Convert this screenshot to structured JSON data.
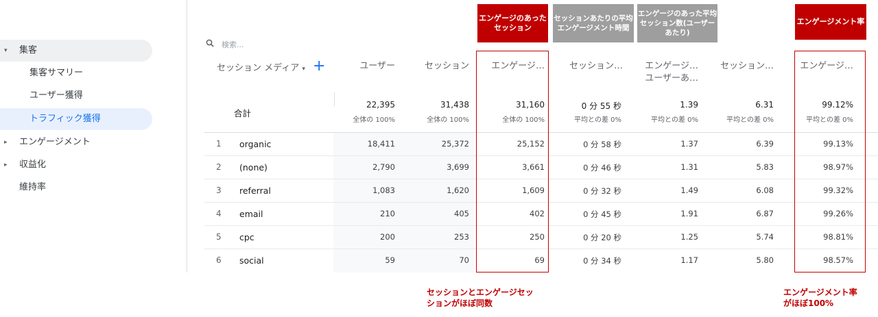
{
  "sidebar": {
    "items": [
      {
        "label": "集客",
        "caret": "▾"
      },
      {
        "label": "集客サマリー"
      },
      {
        "label": "ユーザー獲得"
      },
      {
        "label": "トラフィック獲得"
      },
      {
        "label": "エンゲージメント",
        "caret": "▸"
      },
      {
        "label": "収益化",
        "caret": "▸"
      },
      {
        "label": "維持率"
      }
    ]
  },
  "annotations": {
    "hdr_engaged_sessions": "エンゲージのあったセッション",
    "hdr_avg_engagement": "セッションあたりの平均エンゲージメント時間",
    "hdr_engaged_per_user": "エンゲージのあった平均セッション数(ユーザーあたり)",
    "hdr_engagement_rate": "エンゲージメント率",
    "note_sessions_line1": "セッションとエンゲージセッ",
    "note_sessions_line2": "ションがほぼ同数",
    "note_rate_line1": "エンゲージメント率",
    "note_rate_line2": "がほぼ100%"
  },
  "search": {
    "placeholder": "検索..."
  },
  "table": {
    "dimension_header": "セッション メディア",
    "columns": [
      {
        "label": "ユーザー"
      },
      {
        "label": "セッション"
      },
      {
        "label": "エンゲージ…"
      },
      {
        "label": "セッション…"
      },
      {
        "label": "エンゲージ…",
        "label2": "ユーザーあ…"
      },
      {
        "label": "セッション…"
      },
      {
        "label": "エンゲージ…"
      }
    ],
    "totals": {
      "label": "合計",
      "values": [
        "22,395",
        "31,438",
        "31,160",
        "0 分 55 秒",
        "1.39",
        "6.31",
        "99.12%"
      ],
      "subs": [
        "全体の 100%",
        "全体の 100%",
        "全体の 100%",
        "平均との差 0%",
        "平均との差 0%",
        "平均との差 0%",
        "平均との差 0%"
      ]
    },
    "rows": [
      {
        "idx": "1",
        "name": "organic",
        "values": [
          "18,411",
          "25,372",
          "25,152",
          "0 分 58 秒",
          "1.37",
          "6.39",
          "99.13%"
        ]
      },
      {
        "idx": "2",
        "name": "(none)",
        "values": [
          "2,790",
          "3,699",
          "3,661",
          "0 分 46 秒",
          "1.31",
          "5.83",
          "98.97%"
        ]
      },
      {
        "idx": "3",
        "name": "referral",
        "values": [
          "1,083",
          "1,620",
          "1,609",
          "0 分 32 秒",
          "1.49",
          "6.08",
          "99.32%"
        ]
      },
      {
        "idx": "4",
        "name": "email",
        "values": [
          "210",
          "405",
          "402",
          "0 分 45 秒",
          "1.91",
          "6.87",
          "99.26%"
        ]
      },
      {
        "idx": "5",
        "name": "cpc",
        "values": [
          "200",
          "253",
          "250",
          "0 分 20 秒",
          "1.25",
          "5.74",
          "98.81%"
        ]
      },
      {
        "idx": "6",
        "name": "social",
        "values": [
          "59",
          "70",
          "69",
          "0 分 34 秒",
          "1.17",
          "5.80",
          "98.57%"
        ]
      }
    ]
  },
  "colors": {
    "accent": "#1a73e8",
    "highlight": "#c00000",
    "gray_header": "#9e9e9e"
  }
}
